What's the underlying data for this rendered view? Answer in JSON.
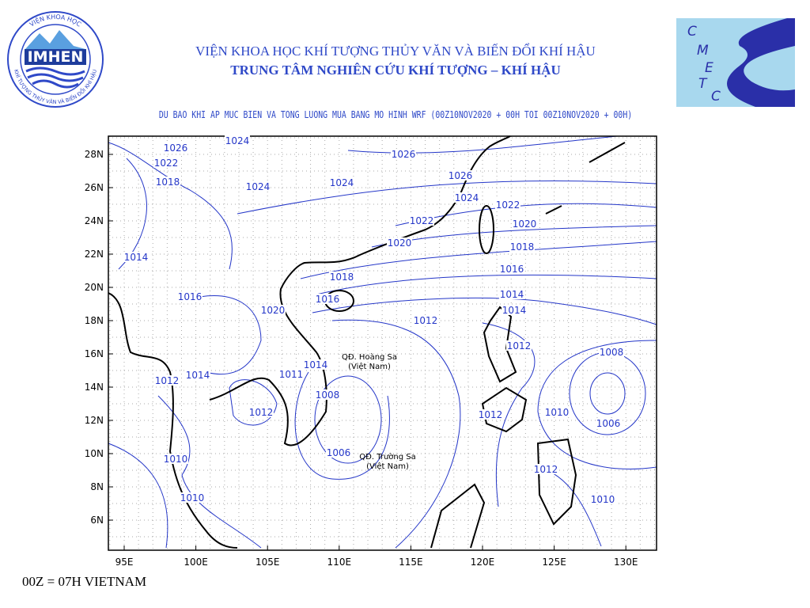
{
  "header": {
    "title_line1": "VIỆN KHOA HỌC KHÍ TƯỢNG THỦY VĂN VÀ BIẾN ĐỔI KHÍ HẬU",
    "title_line2": "TRUNG TÂM NGHIÊN CỨU KHÍ TƯỢNG – KHÍ HẬU",
    "left_logo": {
      "ring_text": "VIỆN KHOA HỌC",
      "bottom_text": "KHÍ TƯỢNG THỦY VĂN VÀ BIẾN ĐỔI KHÍ HẬU",
      "name": "IMHEN"
    },
    "right_logo": {
      "letters": [
        "C",
        "M",
        "E",
        "T",
        "C"
      ]
    }
  },
  "map": {
    "subtitle": "DU BAO KHI AP MUC BIEN VA TONG LUONG MUA BANG MO HINH WRF (00Z10NOV2020 + 00H TOI 00Z10NOV2020 + 00H)",
    "lon_labels": [
      "95E",
      "100E",
      "105E",
      "110E",
      "115E",
      "120E",
      "125E",
      "130E"
    ],
    "lat_labels": [
      "28N",
      "26N",
      "24N",
      "22N",
      "20N",
      "18N",
      "16N",
      "14N",
      "12N",
      "10N",
      "8N",
      "6N"
    ],
    "isobar_labels": [
      "1026",
      "1024",
      "1022",
      "1018",
      "1024",
      "1024",
      "1026",
      "1026",
      "1024",
      "1022",
      "1022",
      "1020",
      "1020",
      "1018",
      "1016",
      "1018",
      "1016",
      "1014",
      "1014",
      "1012",
      "1020",
      "1014",
      "1016",
      "1012",
      "1008",
      "1006",
      "1010",
      "1012",
      "1012",
      "1010",
      "1014",
      "1011",
      "1008",
      "1012",
      "1014",
      "1012",
      "1010",
      "1006",
      "1010"
    ],
    "places": [
      {
        "name": "QĐ. Hoàng Sa",
        "note": "(Việt Nam)"
      },
      {
        "name": "QĐ. Trường Sa",
        "note": "(Việt Nam)"
      }
    ]
  },
  "footer": {
    "text": "00Z = 07H VIETNAM"
  }
}
